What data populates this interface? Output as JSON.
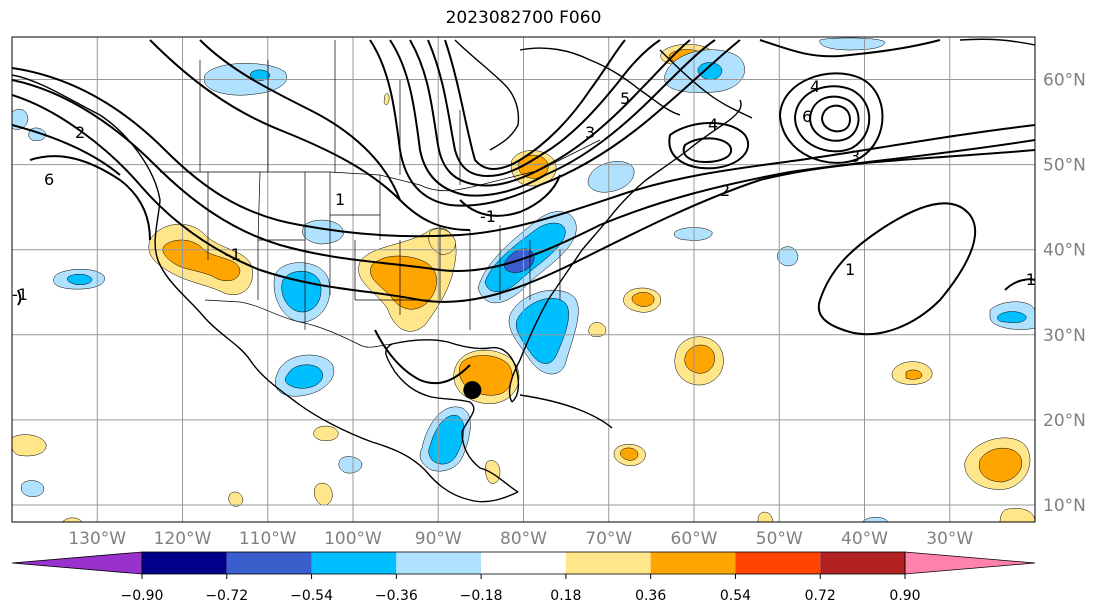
{
  "title": "2023082700 F060",
  "map": {
    "lon_ticks": [
      "130°W",
      "120°W",
      "110°W",
      "100°W",
      "90°W",
      "80°W",
      "70°W",
      "60°W",
      "50°W",
      "40°W",
      "30°W"
    ],
    "lat_ticks": [
      "60°N",
      "50°N",
      "40°N",
      "30°N",
      "20°N",
      "10°N"
    ],
    "lon_range": [
      -140,
      -20
    ],
    "lat_range": [
      8,
      65
    ],
    "contour_labels": [
      "1",
      "1",
      "2",
      "2",
      "3",
      "3",
      "4",
      "4",
      "5",
      "6",
      "6",
      "-1",
      "-1",
      "-1",
      "-1"
    ],
    "marker": {
      "lon": -86,
      "lat": 23.5,
      "color": "#000000"
    }
  },
  "colorbar": {
    "ticks": [
      "−0.90",
      "−0.72",
      "−0.54",
      "−0.36",
      "−0.18",
      "0.18",
      "0.36",
      "0.54",
      "0.72",
      "0.90"
    ],
    "colors": [
      "#9932cc",
      "#00008b",
      "#3a5fcd",
      "#00bfff",
      "#b0e2ff",
      "#ffffff",
      "#ffe68a",
      "#ffa500",
      "#ff4500",
      "#b22222",
      "#ff82ab"
    ]
  }
}
